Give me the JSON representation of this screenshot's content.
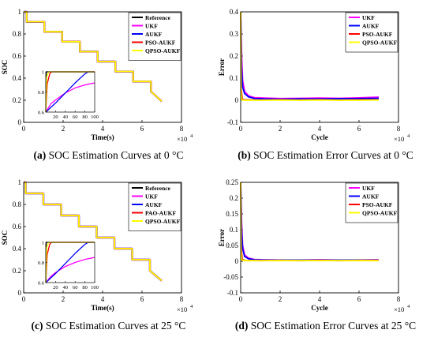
{
  "figure": {
    "captions": [
      {
        "tag": "(a)",
        "text": "SOC Estimation Curves at 0 °C"
      },
      {
        "tag": "(b)",
        "text": "SOC Estimation Error Curves at 0 °C"
      },
      {
        "tag": "(c)",
        "text": "SOC Estimation Curves at 25 °C"
      },
      {
        "tag": "(d)",
        "text": "SOC Estimation Error Curves at 25 °C"
      }
    ]
  },
  "chart_data": [
    {
      "type": "line",
      "title": "",
      "xlabel": "Time(s)",
      "ylabel": "SOC",
      "x_exponent": "×10",
      "x_exponent_power": "4",
      "xlim": [
        0,
        8
      ],
      "ylim": [
        0,
        1
      ],
      "xticks": [
        0,
        2,
        4,
        6,
        8
      ],
      "yticks": [
        0,
        0.2,
        0.4,
        0.6,
        0.8,
        1
      ],
      "legend_position": "top-right",
      "series": [
        {
          "name": "Reference",
          "color": "#000000"
        },
        {
          "name": "UKF",
          "color": "#ff00ff"
        },
        {
          "name": "AUKF",
          "color": "#0000ff"
        },
        {
          "name": "PSO-AUKF",
          "color": "#ff0000"
        },
        {
          "name": "QPSO-AUKF",
          "color": "#ffff00"
        }
      ],
      "step_profile": {
        "x": [
          0,
          0.15,
          0.15,
          1.05,
          1.05,
          1.95,
          1.95,
          2.85,
          2.85,
          3.75,
          3.75,
          4.65,
          4.65,
          5.55,
          5.55,
          6.45,
          6.45,
          7.0
        ],
        "y": [
          1,
          1,
          0.91,
          0.91,
          0.82,
          0.82,
          0.73,
          0.73,
          0.64,
          0.64,
          0.55,
          0.55,
          0.46,
          0.46,
          0.37,
          0.37,
          0.28,
          0.19
        ]
      },
      "inset": {
        "xlim": [
          0,
          100
        ],
        "ylim": [
          0.6,
          1
        ],
        "xticks": [
          20,
          40,
          60,
          80,
          100
        ],
        "yticks": [
          0.6,
          0.8,
          1
        ],
        "series": {
          "Reference": {
            "x": [
              0,
              1,
              100
            ],
            "y": [
              0.6,
              1,
              1
            ]
          },
          "UKF": {
            "x": [
              0,
              10,
              20,
              40,
              60,
              80,
              100
            ],
            "y": [
              0.6,
              0.68,
              0.72,
              0.79,
              0.84,
              0.87,
              0.89
            ]
          },
          "AUKF": {
            "x": [
              0,
              20,
              40,
              60,
              80,
              87,
              100
            ],
            "y": [
              0.6,
              0.69,
              0.79,
              0.89,
              0.98,
              1,
              1
            ]
          },
          "PSO-AUKF": {
            "x": [
              0,
              3,
              8,
              12,
              100
            ],
            "y": [
              0.6,
              0.88,
              0.98,
              1,
              1
            ]
          },
          "QPSO-AUKF": {
            "x": [
              0,
              2,
              6,
              100
            ],
            "y": [
              0.6,
              0.95,
              1,
              1
            ]
          }
        }
      }
    },
    {
      "type": "line",
      "title": "",
      "xlabel": "Cycle",
      "ylabel": "Error",
      "x_exponent": "×10",
      "x_exponent_power": "4",
      "xlim": [
        0,
        8
      ],
      "ylim": [
        -0.1,
        0.4
      ],
      "xticks": [
        0,
        2,
        4,
        6,
        8
      ],
      "yticks": [
        -0.1,
        0,
        0.1,
        0.2,
        0.3,
        0.4
      ],
      "legend_position": "top-right",
      "series": [
        {
          "name": "UKF",
          "color": "#ff00ff",
          "x": [
            0,
            0.05,
            0.1,
            0.2,
            0.4,
            0.7,
            1.2,
            2,
            3,
            4,
            5,
            6,
            7
          ],
          "y": [
            0.4,
            0.2,
            0.09,
            0.04,
            0.02,
            0.012,
            0.01,
            0.008,
            0.009,
            0.01,
            0.009,
            0.011,
            0.014
          ]
        },
        {
          "name": "AUKF",
          "color": "#0000ff",
          "x": [
            0,
            0.05,
            0.1,
            0.2,
            0.4,
            0.7,
            1.2,
            2,
            3,
            4,
            5,
            6,
            7
          ],
          "y": [
            0.4,
            0.15,
            0.06,
            0.03,
            0.015,
            0.008,
            0.006,
            0.005,
            0.006,
            0.006,
            0.007,
            0.008,
            0.009
          ]
        },
        {
          "name": "PSO-AUKF",
          "color": "#ff0000",
          "x": [
            0,
            0.03,
            0.08,
            0.2,
            1,
            2,
            3,
            4,
            5,
            6,
            7
          ],
          "y": [
            0.4,
            0.05,
            0.005,
            0.002,
            0.001,
            0.002,
            0.001,
            0.002,
            0.001,
            0.002,
            0.002
          ]
        },
        {
          "name": "QPSO-AUKF",
          "color": "#ffff00",
          "x": [
            0,
            0.02,
            0.05,
            0.2,
            1,
            2,
            3,
            4,
            5,
            6,
            7
          ],
          "y": [
            0.4,
            0.04,
            0.002,
            0.0,
            0.0,
            0.001,
            0.0,
            0.001,
            0.0,
            0.0,
            0.001
          ]
        }
      ]
    },
    {
      "type": "line",
      "title": "",
      "xlabel": "Time(s)",
      "ylabel": "SOC",
      "x_exponent": "×10",
      "x_exponent_power": "4",
      "xlim": [
        0,
        8
      ],
      "ylim": [
        0,
        1
      ],
      "xticks": [
        0,
        2,
        4,
        6,
        8
      ],
      "yticks": [
        0,
        0.2,
        0.4,
        0.6,
        0.8,
        1
      ],
      "legend_position": "top-right",
      "series": [
        {
          "name": "Reference",
          "color": "#000000"
        },
        {
          "name": "UKF",
          "color": "#ff00ff"
        },
        {
          "name": "AUKF",
          "color": "#0000ff"
        },
        {
          "name": "PAO-AUKF",
          "color": "#ff0000"
        },
        {
          "name": "QPSO-AUKF",
          "color": "#ffff00"
        }
      ],
      "step_profile": {
        "x": [
          0,
          0.1,
          0.1,
          1.0,
          1.0,
          1.9,
          1.9,
          2.8,
          2.8,
          3.7,
          3.7,
          4.6,
          4.6,
          5.5,
          5.5,
          6.4,
          6.4,
          7.0
        ],
        "y": [
          1,
          1,
          0.9,
          0.9,
          0.8,
          0.8,
          0.7,
          0.7,
          0.6,
          0.6,
          0.5,
          0.5,
          0.4,
          0.4,
          0.3,
          0.3,
          0.2,
          0.11
        ]
      },
      "inset": {
        "xlim": [
          0,
          100
        ],
        "ylim": [
          0.6,
          1
        ],
        "xticks": [
          20,
          40,
          60,
          80,
          100
        ],
        "yticks": [
          0.6,
          0.8,
          1
        ],
        "series": {
          "Reference": {
            "x": [
              0,
              1,
              100
            ],
            "y": [
              0.6,
              1,
              1
            ]
          },
          "UKF": {
            "x": [
              0,
              10,
              20,
              40,
              60,
              80,
              100
            ],
            "y": [
              0.6,
              0.66,
              0.7,
              0.76,
              0.8,
              0.83,
              0.85
            ]
          },
          "AUKF": {
            "x": [
              0,
              20,
              40,
              60,
              80,
              87,
              100
            ],
            "y": [
              0.6,
              0.69,
              0.79,
              0.89,
              0.98,
              1,
              1
            ]
          },
          "PAO-AUKF": {
            "x": [
              0,
              3,
              8,
              12,
              100
            ],
            "y": [
              0.6,
              0.88,
              0.98,
              1,
              1
            ]
          },
          "QPSO-AUKF": {
            "x": [
              0,
              2,
              6,
              100
            ],
            "y": [
              0.6,
              0.95,
              1,
              1
            ]
          }
        }
      }
    },
    {
      "type": "line",
      "title": "",
      "xlabel": "Cycle",
      "ylabel": "Error",
      "x_exponent": "×10",
      "x_exponent_power": "4",
      "xlim": [
        0,
        8
      ],
      "ylim": [
        -0.1,
        0.25
      ],
      "xticks": [
        0,
        2,
        4,
        6,
        8
      ],
      "yticks": [
        -0.1,
        -0.05,
        0,
        0.05,
        0.1,
        0.15,
        0.2,
        0.25
      ],
      "legend_position": "top-right",
      "series": [
        {
          "name": "UKF",
          "color": "#ff00ff",
          "x": [
            0,
            0.05,
            0.1,
            0.2,
            0.4,
            0.7,
            1.2,
            2,
            3,
            4,
            5,
            6,
            7
          ],
          "y": [
            0.25,
            0.12,
            0.05,
            0.02,
            0.01,
            0.006,
            0.005,
            0.004,
            0.004,
            0.005,
            0.004,
            0.004,
            0.005
          ]
        },
        {
          "name": "AUKF",
          "color": "#0000ff",
          "x": [
            0,
            0.05,
            0.1,
            0.2,
            0.4,
            0.7,
            1.2,
            2,
            3,
            4,
            5,
            6,
            7
          ],
          "y": [
            0.25,
            0.1,
            0.04,
            0.015,
            0.008,
            0.005,
            0.004,
            0.004,
            0.004,
            0.004,
            0.004,
            0.004,
            0.004
          ]
        },
        {
          "name": "PSO-AUKF",
          "color": "#ff0000",
          "x": [
            0,
            0.03,
            0.08,
            0.2,
            1,
            2,
            3,
            4,
            5,
            6,
            7
          ],
          "y": [
            0.25,
            0.04,
            0.006,
            0.003,
            0.002,
            0.003,
            0.002,
            0.003,
            0.002,
            0.003,
            0.003
          ]
        },
        {
          "name": "QPSO-AUKF",
          "color": "#ffff00",
          "x": [
            0,
            0.02,
            0.05,
            0.2,
            1,
            2,
            3,
            4,
            5,
            6,
            7
          ],
          "y": [
            0.25,
            0.03,
            0.004,
            0.002,
            0.002,
            0.002,
            0.002,
            0.002,
            0.002,
            0.002,
            0.002
          ]
        }
      ]
    }
  ]
}
